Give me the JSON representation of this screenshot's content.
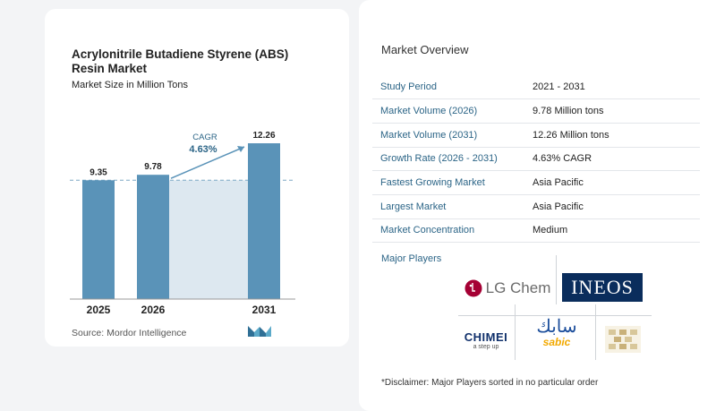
{
  "chart": {
    "title": "Acrylonitrile Butadiene Styrene (ABS) Resin Market",
    "subtitle": "Market Size in Million Tons",
    "source": "Source:  Mordor Intelligence",
    "cagr_label": "CAGR",
    "cagr_value": "4.63%"
  },
  "chart_data": {
    "type": "bar",
    "title": "Acrylonitrile Butadiene Styrene (ABS) Resin Market",
    "subtitle": "Market Size in Million Tons",
    "categories": [
      "2025",
      "2026",
      "2031"
    ],
    "values": [
      9.35,
      9.78,
      12.26
    ],
    "value_labels": [
      "9.35",
      "9.78",
      "12.26"
    ],
    "ylim": [
      0,
      12.26
    ],
    "bar_color": "#5a93b8",
    "shade_color": "#dde8f0",
    "annotation": "CAGR 4.63%"
  },
  "overview": {
    "title": "Market Overview",
    "rows": [
      {
        "key": "Study Period",
        "value": "2021 - 2031"
      },
      {
        "key": "Market Volume (2026)",
        "value": "9.78 Million tons"
      },
      {
        "key": "Market Volume (2031)",
        "value": "12.26 Million tons"
      },
      {
        "key": "Growth Rate (2026 - 2031)",
        "value": "4.63% CAGR"
      },
      {
        "key": "Fastest Growing Market",
        "value": "Asia Pacific"
      },
      {
        "key": "Largest Market",
        "value": "Asia Pacific"
      },
      {
        "key": "Market Concentration",
        "value": "Medium"
      }
    ]
  },
  "players": {
    "title": "Major Players",
    "lg": "LG Chem",
    "ineos": "INEOS",
    "chimei": "CHIMEI",
    "chimei_tag": "a step up",
    "sabic_arabic": "سابك",
    "sabic": "sabic",
    "disclaimer": "*Disclaimer: Major Players sorted in no particular order"
  },
  "colors": {
    "accent": "#2c6587",
    "bar": "#5a93b8",
    "shade": "#dde8f0"
  }
}
